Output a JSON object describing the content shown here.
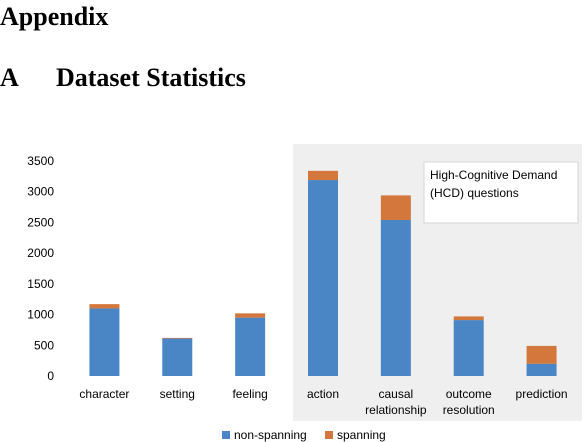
{
  "appendix_title": "Appendix",
  "section": {
    "number": "A",
    "title": "Dataset Statistics"
  },
  "chart_data": {
    "type": "bar",
    "stacked": true,
    "categories": [
      [
        "character"
      ],
      [
        "setting"
      ],
      [
        "feeling"
      ],
      [
        "action"
      ],
      [
        "causal",
        "relationship"
      ],
      [
        "outcome",
        "resolution"
      ],
      [
        "prediction"
      ]
    ],
    "series": [
      {
        "name": "non-spanning",
        "color": "#4a86c5",
        "values": [
          1100,
          610,
          950,
          3190,
          2540,
          910,
          200
        ]
      },
      {
        "name": "spanning",
        "color": "#d4773c",
        "values": [
          70,
          10,
          70,
          150,
          400,
          60,
          290
        ]
      }
    ],
    "ylim": [
      0,
      3500
    ],
    "yticks": [
      0,
      500,
      1000,
      1500,
      2000,
      2500,
      3000,
      3500
    ],
    "grid": false,
    "legend_position": "bottom",
    "annotation": {
      "text": [
        "High-Cognitive Demand",
        "(HCD) questions"
      ],
      "highlighted_categories": [
        "action",
        "causal relationship",
        "outcome resolution",
        "prediction"
      ]
    }
  }
}
